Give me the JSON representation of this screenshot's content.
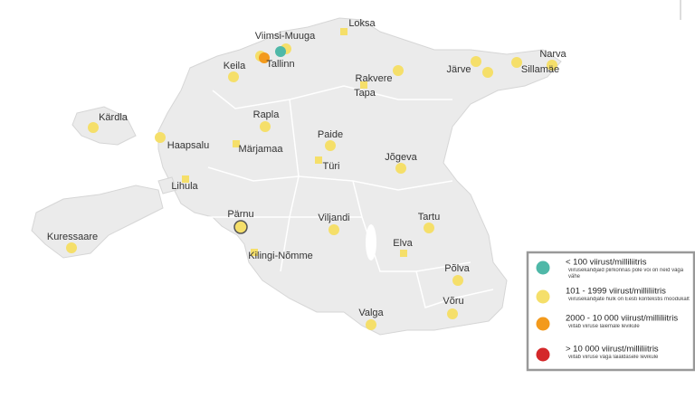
{
  "places": [
    {
      "label": "Loksa",
      "markers": [
        {
          "shape": "square",
          "color": "#f5df6a"
        }
      ]
    },
    {
      "label": "Viimsi-Muuga",
      "markers": [
        {
          "shape": "circle",
          "color": "#f5df6a"
        },
        {
          "shape": "circle",
          "color": "#4fb8a8"
        }
      ]
    },
    {
      "label": "Tallinn",
      "markers": [
        {
          "shape": "circle",
          "color": "#f5df6a"
        },
        {
          "shape": "circle",
          "color": "#f39a1c"
        }
      ]
    },
    {
      "label": "Keila",
      "markers": [
        {
          "shape": "circle",
          "color": "#f5df6a"
        }
      ]
    },
    {
      "label": "Narva",
      "markers": [
        {
          "shape": "circle",
          "color": "#f5df6a"
        }
      ]
    },
    {
      "label": "Sillamäe",
      "markers": [
        {
          "shape": "circle",
          "color": "#f5df6a"
        }
      ]
    },
    {
      "label": "Järve",
      "markers": [
        {
          "shape": "circle",
          "color": "#f5df6a"
        },
        {
          "shape": "circle",
          "color": "#f5df6a"
        }
      ]
    },
    {
      "label": "Rakvere",
      "markers": [
        {
          "shape": "circle",
          "color": "#f5df6a"
        }
      ]
    },
    {
      "label": "Tapa",
      "markers": [
        {
          "shape": "square",
          "color": "#f5df6a"
        }
      ]
    },
    {
      "label": "Kärdla",
      "markers": [
        {
          "shape": "circle",
          "color": "#f5df6a"
        }
      ]
    },
    {
      "label": "Rapla",
      "markers": [
        {
          "shape": "circle",
          "color": "#f5df6a"
        }
      ]
    },
    {
      "label": "Haapsalu",
      "markers": [
        {
          "shape": "circle",
          "color": "#f5df6a"
        }
      ]
    },
    {
      "label": "Paide",
      "markers": [
        {
          "shape": "circle",
          "color": "#f5df6a"
        }
      ]
    },
    {
      "label": "Märjamaa",
      "markers": [
        {
          "shape": "square",
          "color": "#f5df6a"
        }
      ]
    },
    {
      "label": "Türi",
      "markers": [
        {
          "shape": "square",
          "color": "#f5df6a"
        }
      ]
    },
    {
      "label": "Jõgeva",
      "markers": [
        {
          "shape": "circle",
          "color": "#f5df6a"
        }
      ]
    },
    {
      "label": "Lihula",
      "markers": [
        {
          "shape": "square",
          "color": "#f5df6a"
        }
      ]
    },
    {
      "label": "Pärnu",
      "markers": [
        {
          "shape": "circle",
          "color": "#f5df6a"
        }
      ]
    },
    {
      "label": "Viljandi",
      "markers": [
        {
          "shape": "circle",
          "color": "#f5df6a"
        }
      ]
    },
    {
      "label": "Tartu",
      "markers": [
        {
          "shape": "circle",
          "color": "#f5df6a"
        }
      ]
    },
    {
      "label": "Kuressaare",
      "markers": [
        {
          "shape": "circle",
          "color": "#f5df6a"
        }
      ]
    },
    {
      "label": "Elva",
      "markers": [
        {
          "shape": "square",
          "color": "#f5df6a"
        }
      ]
    },
    {
      "label": "Kilingi-Nõmme",
      "markers": [
        {
          "shape": "square",
          "color": "#f5df6a"
        }
      ]
    },
    {
      "label": "Põlva",
      "markers": [
        {
          "shape": "circle",
          "color": "#f5df6a"
        }
      ]
    },
    {
      "label": "Võru",
      "markers": [
        {
          "shape": "circle",
          "color": "#f5df6a"
        }
      ]
    },
    {
      "label": "Valga",
      "markers": [
        {
          "shape": "circle",
          "color": "#f5df6a"
        }
      ]
    }
  ],
  "legend": [
    {
      "title": "< 100 viirust/milliliitris",
      "note": "viirusekandjaid piirkonnas pole või on neid väga vähe",
      "color": "#4fb8a8"
    },
    {
      "title": "101 - 1999 viirust/milliliitris",
      "note": "viirusekandjate hulk on Eesti kontekstis mõõdukalt",
      "color": "#f5df6a"
    },
    {
      "title": "2000 - 10 000 viirust/milliliitris",
      "note": "viitab viiruse laiemale levikule",
      "color": "#f39a1c"
    },
    {
      "title": "> 10 000 viirust/milliliitris",
      "note": "viitab viiruse väga laialdasele levikule",
      "color": "#d4282a"
    }
  ]
}
